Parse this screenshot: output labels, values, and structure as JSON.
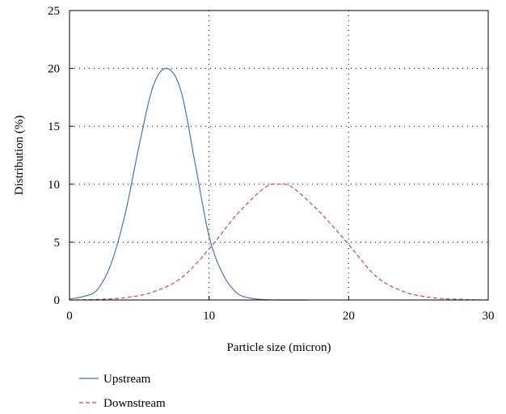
{
  "chart_data": {
    "type": "line",
    "title": "",
    "xlabel": "Particle size (micron)",
    "ylabel": "Distribution (%)",
    "xlim": [
      0,
      30
    ],
    "ylim": [
      0,
      25
    ],
    "x_ticks": [
      "0",
      "10",
      "20",
      "30"
    ],
    "y_ticks": [
      "0",
      "5",
      "10",
      "15",
      "20",
      "25"
    ],
    "grid": "dotted",
    "legend_position": "bottom-left, below plot",
    "series": [
      {
        "name": "Upstream",
        "color": "#4a72b0",
        "line_style": "solid",
        "x": [
          0,
          1,
          2,
          3,
          4,
          5,
          6,
          7,
          8,
          9,
          10,
          11,
          12,
          13,
          14,
          15,
          16,
          17
        ],
        "y": [
          0.1,
          0.3,
          0.9,
          3.2,
          7.5,
          13.4,
          18.5,
          20.0,
          18.0,
          11.8,
          5.5,
          2.2,
          0.6,
          0.15,
          0.03,
          0.0,
          0.0,
          0.0
        ]
      },
      {
        "name": "Downstream",
        "color": "#c0504d",
        "line_style": "dashed",
        "x": [
          0,
          2,
          4,
          6,
          8,
          10,
          12,
          14,
          15,
          16,
          18,
          20,
          22,
          24,
          26,
          28,
          30
        ],
        "y": [
          0.0,
          0.05,
          0.2,
          0.7,
          1.9,
          4.4,
          7.4,
          9.7,
          10.0,
          9.7,
          7.5,
          4.8,
          2.0,
          0.7,
          0.2,
          0.05,
          0.0
        ]
      }
    ]
  }
}
